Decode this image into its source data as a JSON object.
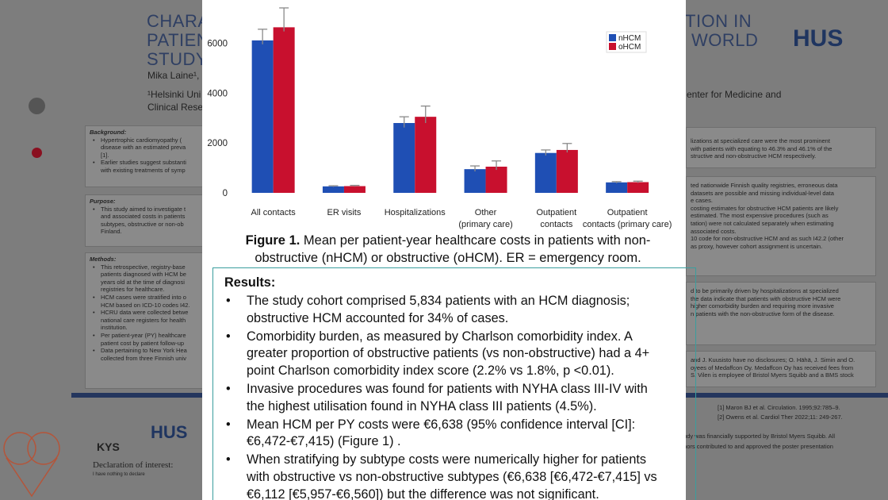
{
  "poster": {
    "title_left": [
      "CHARA",
      "PATIEN",
      "STUDY I"
    ],
    "title_right": [
      "TION IN",
      "WORLD"
    ],
    "logo": "HUS",
    "authors": "Mika Laine¹, (",
    "affiliation_left": [
      "¹Helsinki Uni",
      "Clinical Resea"
    ],
    "affiliation_right": "enter for Medicine and",
    "left_sections": [
      {
        "heading": "Background:",
        "items": [
          [
            "Hypertrophic cardiomyopathy (",
            "disease with an estimated preva",
            "[1]."
          ],
          [
            "Earlier studies suggest substanti",
            "with existing treatments of symp"
          ]
        ]
      },
      {
        "heading": "Purpose:",
        "items": [
          [
            "This study aimed to investigate t",
            "and associated costs in patients",
            "subtypes, obstructive or non-ob",
            "Finland."
          ]
        ]
      },
      {
        "heading": "Methods:",
        "items": [
          [
            "This retrospective, registry-base",
            "patients diagnosed with HCM be",
            "years old at the time of diagnosi",
            "registries for healthcare."
          ],
          [
            "HCM cases were stratified into o",
            "HCM based on ICD-10 codes I42."
          ],
          [
            "HCRU data were collected betwe",
            "national care registers for health",
            "institution."
          ],
          [
            "Per patient-year (PY) healthcare",
            "patient cost by patient follow-up"
          ],
          [
            "Data pertaining to New York Hea",
            "collected from three Finnish univ"
          ]
        ]
      }
    ],
    "right_boxes": [
      [
        "lizations at specialized care were the most prominent",
        "with patients with equating to 46.3% and 46.1% of the",
        "structive and non-obstructive HCM respectively."
      ],
      [
        "ted nationwide Finnish quality registries, erroneous data",
        "datasets are possible and missing individual-level data",
        "e cases.",
        "costing estimates for obstructive HCM patients are likely",
        "estimated. The most expensive procedures (such as",
        "tation) were not calculated separately when estimating",
        "associated costs.",
        "10 code for non-obstructive HCM and as such I42.2 (other",
        "as proxy, however cohort assignment is uncertain."
      ],
      [
        "d to be primarily driven by hospitalizations at specialized",
        "the data indicate that patients with obstructive HCM were",
        "higher comorbidity burden and requiring more invasive",
        "n patients with the non-obstructive form of the disease."
      ],
      [
        "and J. Kuusisto have no disclosures; O. Hähä, J. Simin and O.",
        "oyees of Medaffcon Oy. Medaffcon Oy has received fees from",
        "S. Vilen is employee of Bristol Myers Squibb and a BMS stock"
      ]
    ],
    "references": [
      "[1] Maron BJ et al. Circulation. 1995;92:785–9.",
      "[2] Owens et al. Cardiol Ther 2022;11: 249-267."
    ],
    "funding": [
      "tudy was financially supported by Bristol Myers Squibb. All",
      "thors contributed to and approved the poster presentation"
    ],
    "logo_kys": "KYS",
    "logo_hus_small": "HUS",
    "declaration": "Declaration of interest:",
    "declaration_text": "I have nothing to declare"
  },
  "chart_data": {
    "type": "bar",
    "categories": [
      "All contacts",
      "ER visits",
      "Hospitalizations",
      "Other\n(primary care)",
      "Outpatient\ncontacts",
      "Outpatient\ncontacts (primary care)"
    ],
    "series": [
      {
        "name": "nHCM",
        "color": "#1f4fb4",
        "values": [
          6112,
          260,
          2800,
          950,
          1600,
          420
        ],
        "error_low": [
          5957,
          240,
          2620,
          860,
          1500,
          390
        ],
        "error_high": [
          6560,
          285,
          3050,
          1080,
          1720,
          450
        ]
      },
      {
        "name": "oHCM",
        "color": "#c8102e",
        "values": [
          6638,
          270,
          3050,
          1050,
          1720,
          430
        ],
        "error_low": [
          6472,
          250,
          2800,
          920,
          1620,
          400
        ],
        "error_high": [
          7415,
          300,
          3480,
          1280,
          1980,
          470
        ]
      }
    ],
    "ylim": [
      0,
      7700
    ],
    "yticks": [
      0,
      2000,
      4000,
      6000
    ],
    "legend": "top-right"
  },
  "figure": {
    "label": "Figure 1.",
    "caption": "Mean per patient-year healthcare costs in patients with non-obstructive (nHCM) or obstructive (oHCM). ER = emergency room."
  },
  "results": {
    "heading": "Results:",
    "bullets": [
      "The study cohort comprised 5,834 patients with an HCM diagnosis; obstructive HCM accounted for 34% of cases.",
      "Comorbidity burden, as measured by Charlson comorbidity index. A greater proportion of obstructive patients (vs non-obstructive) had a 4+ point Charlson comorbidity index score (2.2% vs 1.8%, p <0.01).",
      "Invasive procedures was found for patients with NYHA class III-IV with the highest utilisation found in NYHA class III patients (4.5%).",
      "Mean HCM per PY costs were €6,638 (95% confidence interval [CI]: €6,472-€7,415) (Figure 1) .",
      "When stratifying by subtype costs were numerically higher for patients with obstructive vs non-obstructive subtypes (€6,638 [€6,472-€7,415] vs €6,112 [€5,957-€6,560]) but the difference was not significant."
    ]
  }
}
